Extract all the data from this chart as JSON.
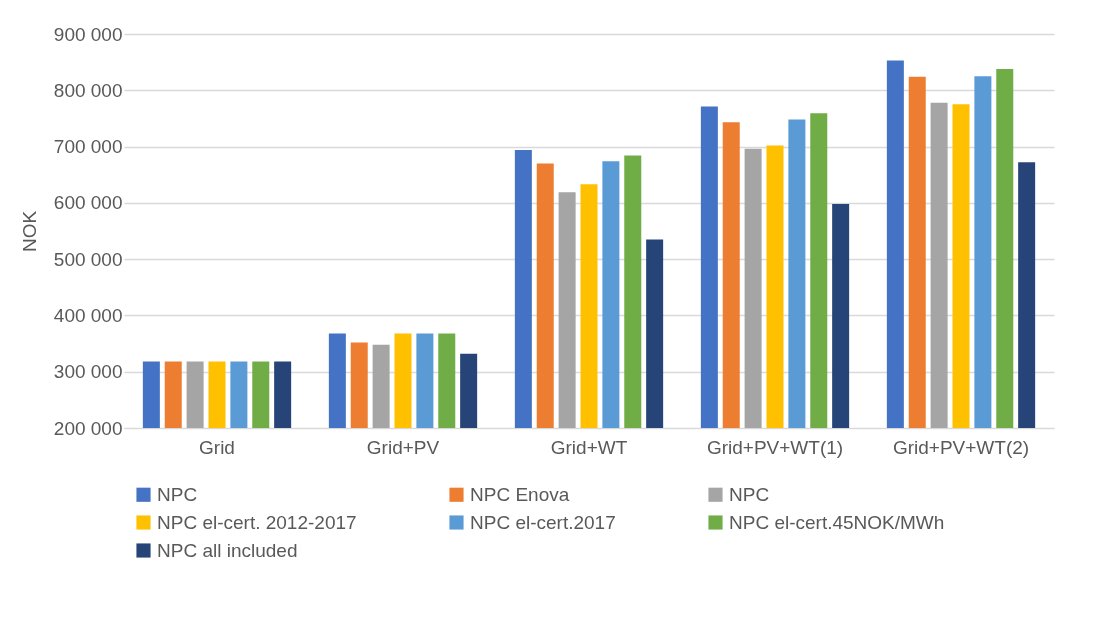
{
  "chart_data": {
    "type": "bar",
    "ylabel": "NOK",
    "categories": [
      "Grid",
      "Grid+PV",
      "Grid+WT",
      "Grid+PV+WT(1)",
      "Grid+PV+WT(2)"
    ],
    "series": [
      {
        "name": "NPC",
        "color": "#4472c4",
        "values": [
          318000,
          368000,
          694000,
          771000,
          853000
        ]
      },
      {
        "name": "NPC Enova",
        "color": "#ed7d31",
        "values": [
          318000,
          352000,
          670000,
          743000,
          824000
        ]
      },
      {
        "name": "NPC",
        "color": "#a5a5a5",
        "values": [
          318000,
          348000,
          619000,
          696000,
          778000
        ]
      },
      {
        "name": "NPC el-cert. 2012-2017",
        "color": "#ffc000",
        "values": [
          318000,
          368000,
          633000,
          702000,
          775000
        ]
      },
      {
        "name": "NPC el-cert.2017",
        "color": "#5b9bd5",
        "values": [
          318000,
          368000,
          674000,
          748000,
          825000
        ]
      },
      {
        "name": "NPC el-cert.45NOK/MWh",
        "color": "#70ad47",
        "values": [
          318000,
          368000,
          684000,
          759000,
          838000
        ]
      },
      {
        "name": "NPC all included",
        "color": "#264478",
        "values": [
          318000,
          332000,
          535000,
          598000,
          672000
        ]
      }
    ],
    "ylim": [
      200000,
      900000
    ],
    "yticks": [
      {
        "value": 200000,
        "label": "200 000"
      },
      {
        "value": 300000,
        "label": "300 000"
      },
      {
        "value": 400000,
        "label": "400 000"
      },
      {
        "value": 500000,
        "label": "500 000"
      },
      {
        "value": 600000,
        "label": "600 000"
      },
      {
        "value": 700000,
        "label": "700 000"
      },
      {
        "value": 800000,
        "label": "800 000"
      },
      {
        "value": 900000,
        "label": "900 000"
      }
    ],
    "grid": "y",
    "legend": "bottom"
  }
}
